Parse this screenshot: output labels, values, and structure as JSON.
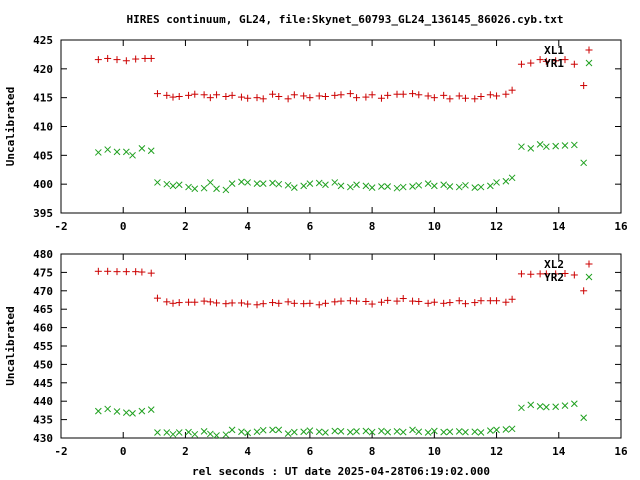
{
  "title": "HIRES continuum, GL24, file:Skynet_60793_GL24_136145_86026.cyb.txt",
  "colors": {
    "xl": "#cc0000",
    "yr": "#1fa01f",
    "axis": "#000000"
  },
  "chart_data": [
    {
      "type": "scatter",
      "xlabel": "",
      "ylabel": "Uncalibrated",
      "xlim": [
        -2,
        16
      ],
      "ylim": [
        395,
        425
      ],
      "xticks": [
        -2,
        0,
        2,
        4,
        6,
        8,
        10,
        12,
        14,
        16
      ],
      "yticks": [
        395,
        400,
        405,
        410,
        415,
        420,
        425
      ],
      "legend_position": "top-right",
      "series": [
        {
          "name": "XL1",
          "marker": "plus",
          "points": [
            [
              -0.8,
              421.6
            ],
            [
              -0.5,
              421.8
            ],
            [
              -0.2,
              421.6
            ],
            [
              0.1,
              421.4
            ],
            [
              0.4,
              421.7
            ],
            [
              0.7,
              421.8
            ],
            [
              0.9,
              421.8
            ],
            [
              1.1,
              415.7
            ],
            [
              1.4,
              415.4
            ],
            [
              1.6,
              415.1
            ],
            [
              1.8,
              415.2
            ],
            [
              2.1,
              415.4
            ],
            [
              2.3,
              415.6
            ],
            [
              2.6,
              415.5
            ],
            [
              2.8,
              415.0
            ],
            [
              3.0,
              415.5
            ],
            [
              3.3,
              415.2
            ],
            [
              3.5,
              415.4
            ],
            [
              3.8,
              415.1
            ],
            [
              4.0,
              414.9
            ],
            [
              4.3,
              415.0
            ],
            [
              4.5,
              414.8
            ],
            [
              4.8,
              415.6
            ],
            [
              5.0,
              415.2
            ],
            [
              5.3,
              414.8
            ],
            [
              5.5,
              415.5
            ],
            [
              5.8,
              415.3
            ],
            [
              6.0,
              415.0
            ],
            [
              6.3,
              415.3
            ],
            [
              6.5,
              415.2
            ],
            [
              6.8,
              415.4
            ],
            [
              7.0,
              415.5
            ],
            [
              7.3,
              415.7
            ],
            [
              7.5,
              415.0
            ],
            [
              7.8,
              415.1
            ],
            [
              8.0,
              415.5
            ],
            [
              8.3,
              414.9
            ],
            [
              8.5,
              415.4
            ],
            [
              8.8,
              415.6
            ],
            [
              9.0,
              415.6
            ],
            [
              9.3,
              415.7
            ],
            [
              9.5,
              415.5
            ],
            [
              9.8,
              415.3
            ],
            [
              10.0,
              415.0
            ],
            [
              10.3,
              415.4
            ],
            [
              10.5,
              414.8
            ],
            [
              10.8,
              415.3
            ],
            [
              11.0,
              414.9
            ],
            [
              11.3,
              414.8
            ],
            [
              11.5,
              415.2
            ],
            [
              11.8,
              415.5
            ],
            [
              12.0,
              415.3
            ],
            [
              12.3,
              415.6
            ],
            [
              12.5,
              416.3
            ],
            [
              12.8,
              420.8
            ],
            [
              13.1,
              421.0
            ],
            [
              13.4,
              421.6
            ],
            [
              13.6,
              421.3
            ],
            [
              13.9,
              421.4
            ],
            [
              14.2,
              421.6
            ],
            [
              14.5,
              420.8
            ],
            [
              14.8,
              417.1
            ]
          ]
        },
        {
          "name": "YR1",
          "marker": "cross",
          "points": [
            [
              -0.8,
              405.5
            ],
            [
              -0.5,
              406.0
            ],
            [
              -0.2,
              405.6
            ],
            [
              0.1,
              405.6
            ],
            [
              0.3,
              405.0
            ],
            [
              0.6,
              406.2
            ],
            [
              0.9,
              405.8
            ],
            [
              1.1,
              400.3
            ],
            [
              1.4,
              400.0
            ],
            [
              1.6,
              399.7
            ],
            [
              1.8,
              399.9
            ],
            [
              2.1,
              399.5
            ],
            [
              2.3,
              399.2
            ],
            [
              2.6,
              399.3
            ],
            [
              2.8,
              400.3
            ],
            [
              3.0,
              399.2
            ],
            [
              3.3,
              399.0
            ],
            [
              3.5,
              400.1
            ],
            [
              3.8,
              400.4
            ],
            [
              4.0,
              400.3
            ],
            [
              4.3,
              400.1
            ],
            [
              4.5,
              400.1
            ],
            [
              4.8,
              400.2
            ],
            [
              5.0,
              400.0
            ],
            [
              5.3,
              399.8
            ],
            [
              5.5,
              399.4
            ],
            [
              5.8,
              399.7
            ],
            [
              6.0,
              400.1
            ],
            [
              6.3,
              400.2
            ],
            [
              6.5,
              399.9
            ],
            [
              6.8,
              400.3
            ],
            [
              7.0,
              399.7
            ],
            [
              7.3,
              399.5
            ],
            [
              7.5,
              399.9
            ],
            [
              7.8,
              399.7
            ],
            [
              8.0,
              399.4
            ],
            [
              8.3,
              399.6
            ],
            [
              8.5,
              399.6
            ],
            [
              8.8,
              399.3
            ],
            [
              9.0,
              399.5
            ],
            [
              9.3,
              399.6
            ],
            [
              9.5,
              399.8
            ],
            [
              9.8,
              400.1
            ],
            [
              10.0,
              399.7
            ],
            [
              10.3,
              399.9
            ],
            [
              10.5,
              399.6
            ],
            [
              10.8,
              399.5
            ],
            [
              11.0,
              399.8
            ],
            [
              11.3,
              399.4
            ],
            [
              11.5,
              399.5
            ],
            [
              11.8,
              399.7
            ],
            [
              12.0,
              400.3
            ],
            [
              12.3,
              400.5
            ],
            [
              12.5,
              401.1
            ],
            [
              12.8,
              406.5
            ],
            [
              13.1,
              406.2
            ],
            [
              13.4,
              406.9
            ],
            [
              13.6,
              406.5
            ],
            [
              13.9,
              406.6
            ],
            [
              14.2,
              406.7
            ],
            [
              14.5,
              406.8
            ],
            [
              14.8,
              403.7
            ]
          ]
        }
      ]
    },
    {
      "type": "scatter",
      "xlabel": "rel seconds : UT date 2025-04-28T06:19:02.000",
      "ylabel": "Uncalibrated",
      "xlim": [
        -2,
        16
      ],
      "ylim": [
        430,
        480
      ],
      "xticks": [
        -2,
        0,
        2,
        4,
        6,
        8,
        10,
        12,
        14,
        16
      ],
      "yticks": [
        430,
        435,
        440,
        445,
        450,
        455,
        460,
        465,
        470,
        475,
        480
      ],
      "legend_position": "top-right",
      "series": [
        {
          "name": "XL2",
          "marker": "plus",
          "points": [
            [
              -0.8,
              475.3
            ],
            [
              -0.5,
              475.3
            ],
            [
              -0.2,
              475.2
            ],
            [
              0.1,
              475.2
            ],
            [
              0.4,
              475.2
            ],
            [
              0.6,
              475.1
            ],
            [
              0.9,
              474.8
            ],
            [
              1.1,
              468.0
            ],
            [
              1.4,
              467.0
            ],
            [
              1.6,
              466.6
            ],
            [
              1.8,
              466.8
            ],
            [
              2.1,
              466.9
            ],
            [
              2.3,
              466.9
            ],
            [
              2.6,
              467.2
            ],
            [
              2.8,
              467.0
            ],
            [
              3.0,
              466.7
            ],
            [
              3.3,
              466.5
            ],
            [
              3.5,
              466.7
            ],
            [
              3.8,
              466.7
            ],
            [
              4.0,
              466.4
            ],
            [
              4.3,
              466.2
            ],
            [
              4.5,
              466.5
            ],
            [
              4.8,
              466.8
            ],
            [
              5.0,
              466.6
            ],
            [
              5.3,
              467.0
            ],
            [
              5.5,
              466.6
            ],
            [
              5.8,
              466.5
            ],
            [
              6.0,
              466.6
            ],
            [
              6.3,
              466.2
            ],
            [
              6.5,
              466.6
            ],
            [
              6.8,
              467.0
            ],
            [
              7.0,
              467.2
            ],
            [
              7.3,
              467.3
            ],
            [
              7.5,
              467.2
            ],
            [
              7.8,
              467.1
            ],
            [
              8.0,
              466.4
            ],
            [
              8.3,
              466.9
            ],
            [
              8.5,
              467.4
            ],
            [
              8.8,
              467.2
            ],
            [
              9.0,
              467.9
            ],
            [
              9.3,
              467.2
            ],
            [
              9.5,
              467.1
            ],
            [
              9.8,
              466.6
            ],
            [
              10.0,
              466.9
            ],
            [
              10.3,
              466.6
            ],
            [
              10.5,
              466.8
            ],
            [
              10.8,
              467.3
            ],
            [
              11.0,
              466.5
            ],
            [
              11.3,
              466.8
            ],
            [
              11.5,
              467.3
            ],
            [
              11.8,
              467.3
            ],
            [
              12.0,
              467.3
            ],
            [
              12.3,
              466.9
            ],
            [
              12.5,
              467.7
            ],
            [
              12.8,
              474.6
            ],
            [
              13.1,
              474.5
            ],
            [
              13.4,
              474.6
            ],
            [
              13.6,
              474.6
            ],
            [
              13.9,
              474.6
            ],
            [
              14.2,
              474.7
            ],
            [
              14.5,
              474.3
            ],
            [
              14.8,
              470.0
            ]
          ]
        },
        {
          "name": "YR2",
          "marker": "cross",
          "points": [
            [
              -0.8,
              437.3
            ],
            [
              -0.5,
              437.9
            ],
            [
              -0.2,
              437.2
            ],
            [
              0.1,
              436.9
            ],
            [
              0.3,
              436.7
            ],
            [
              0.6,
              437.3
            ],
            [
              0.9,
              437.7
            ],
            [
              1.1,
              431.5
            ],
            [
              1.4,
              431.5
            ],
            [
              1.6,
              431.0
            ],
            [
              1.8,
              431.5
            ],
            [
              2.1,
              431.6
            ],
            [
              2.3,
              431.0
            ],
            [
              2.6,
              431.8
            ],
            [
              2.8,
              431.1
            ],
            [
              3.0,
              430.7
            ],
            [
              3.3,
              430.9
            ],
            [
              3.5,
              432.2
            ],
            [
              3.8,
              431.7
            ],
            [
              4.0,
              431.4
            ],
            [
              4.3,
              431.7
            ],
            [
              4.5,
              432.1
            ],
            [
              4.8,
              432.2
            ],
            [
              5.0,
              432.2
            ],
            [
              5.3,
              431.2
            ],
            [
              5.5,
              431.6
            ],
            [
              5.8,
              431.7
            ],
            [
              6.0,
              432.0
            ],
            [
              6.3,
              431.7
            ],
            [
              6.5,
              431.5
            ],
            [
              6.8,
              431.9
            ],
            [
              7.0,
              431.8
            ],
            [
              7.3,
              431.6
            ],
            [
              7.5,
              431.8
            ],
            [
              7.8,
              431.9
            ],
            [
              8.0,
              431.6
            ],
            [
              8.3,
              431.9
            ],
            [
              8.5,
              431.6
            ],
            [
              8.8,
              431.8
            ],
            [
              9.0,
              431.6
            ],
            [
              9.3,
              432.2
            ],
            [
              9.5,
              431.7
            ],
            [
              9.8,
              431.5
            ],
            [
              10.0,
              431.9
            ],
            [
              10.3,
              431.6
            ],
            [
              10.5,
              431.7
            ],
            [
              10.8,
              431.8
            ],
            [
              11.0,
              431.6
            ],
            [
              11.3,
              431.7
            ],
            [
              11.5,
              431.5
            ],
            [
              11.8,
              432.0
            ],
            [
              12.0,
              432.2
            ],
            [
              12.3,
              432.3
            ],
            [
              12.5,
              432.5
            ],
            [
              12.8,
              438.2
            ],
            [
              13.1,
              439.0
            ],
            [
              13.4,
              438.6
            ],
            [
              13.6,
              438.4
            ],
            [
              13.9,
              438.5
            ],
            [
              14.2,
              438.8
            ],
            [
              14.5,
              439.3
            ],
            [
              14.8,
              435.5
            ]
          ]
        }
      ]
    }
  ]
}
